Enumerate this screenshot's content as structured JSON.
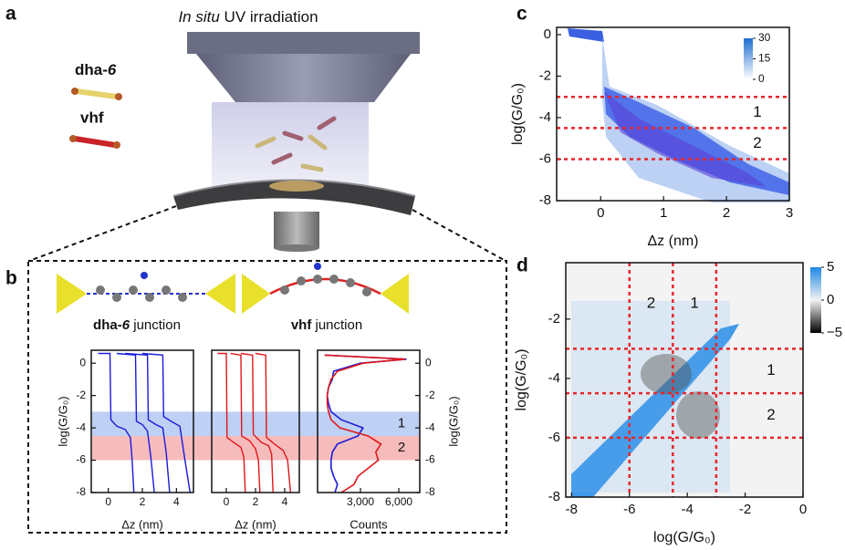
{
  "panel_labels": [
    "a",
    "b",
    "c",
    "d"
  ],
  "panel_a": {
    "title": {
      "italic": "In situ",
      "rest": " UV irradiation"
    },
    "molecules": [
      {
        "name": "dha-",
        "suffix": "6"
      },
      {
        "name": "vhf"
      }
    ]
  },
  "panel_b": {
    "junctions": [
      {
        "name": "dha-",
        "suffix": "6",
        "rest": " junction"
      },
      {
        "name": "vhf",
        "rest": " junction"
      }
    ],
    "bands": [
      {
        "from": -4.5,
        "to": -3,
        "color": "#b3c8f2",
        "label": "1"
      },
      {
        "from": -6,
        "to": -4.5,
        "color": "#f4b0b0",
        "label": "2"
      }
    ]
  },
  "chart_data": [
    {
      "type": "density",
      "xlabel": "Δz (nm)",
      "ylabel": "log(G/G₀)",
      "xlim": [
        -0.7,
        3
      ],
      "xticks": [
        0,
        1,
        2,
        3
      ],
      "ylim": [
        -8,
        0.35
      ],
      "yticks": [
        0,
        -2,
        -4,
        -6,
        -8
      ],
      "hlines": [
        -3,
        -4.5,
        -6
      ],
      "line_color": "#e8262a",
      "regions": [
        "1",
        "2"
      ],
      "colorbar": {
        "clim": [
          0,
          30
        ],
        "ticks": [
          30,
          15,
          0
        ],
        "colors": [
          "#ffffff",
          "#1f6fd1"
        ]
      }
    },
    {
      "type": "density2d",
      "xlabel": "log(G/G₀)",
      "ylabel": "log(G/G₀)",
      "xlim": [
        -8.2,
        0
      ],
      "xticks": [
        -8,
        -6,
        -4,
        -2,
        0
      ],
      "ylim": [
        -8,
        -0.1
      ],
      "yticks": [
        -2,
        -4,
        -6,
        -8
      ],
      "vlines": [
        -6,
        -4.5,
        -3
      ],
      "hlines": [
        -3,
        -4.5,
        -6
      ],
      "line_color": "#e8262a",
      "regions_x": [
        "2",
        "1"
      ],
      "regions_y": [
        "1",
        "2"
      ],
      "colorbar": {
        "clim": [
          -5,
          5
        ],
        "ticks": [
          5,
          0,
          {
            "value": -5,
            "label": "−5"
          }
        ],
        "colors": [
          "#000000",
          "#f2f2f2",
          "#1e88e5"
        ]
      }
    },
    {
      "type": "traces",
      "xlabel": "Δz (nm)",
      "ylabel": "log(G/G₀)",
      "color": "#1a1adb",
      "xlim": [
        -1,
        5
      ],
      "xticks": [
        0,
        2,
        4
      ],
      "ylim": [
        -8,
        0.8
      ],
      "yticks": [
        0,
        -2,
        -4,
        -6,
        -8
      ],
      "series": [
        {
          "x": [
            -0.6,
            0.1,
            0.15,
            0.5,
            1.0,
            1.3,
            1.4,
            1.5
          ],
          "values": [
            0.6,
            0.6,
            -3.5,
            -3.9,
            -4.1,
            -4.6,
            -6.0,
            -8
          ]
        },
        {
          "x": [
            0.5,
            1.6,
            1.65,
            2.0,
            2.3,
            2.5,
            2.7
          ],
          "values": [
            0.6,
            0.5,
            -3.6,
            -3.8,
            -4.2,
            -5.8,
            -8
          ]
        },
        {
          "x": [
            1.0,
            2.3,
            2.35,
            2.8,
            3.2,
            3.4,
            3.6
          ],
          "values": [
            0.6,
            0.5,
            -3.5,
            -3.8,
            -4.0,
            -5.5,
            -8
          ]
        },
        {
          "x": [
            2.0,
            3.2,
            3.25,
            3.7,
            4.2,
            4.5,
            4.8
          ],
          "values": [
            0.6,
            0.5,
            -3.3,
            -3.6,
            -3.9,
            -6.0,
            -8
          ]
        }
      ]
    },
    {
      "type": "traces",
      "xlabel": "Δz (nm)",
      "color": "#e0161b",
      "xlim": [
        -1,
        5
      ],
      "xticks": [
        0,
        2,
        4
      ],
      "ylim": [
        -8,
        0.8
      ],
      "series": [
        {
          "x": [
            -0.6,
            0.0,
            0.05,
            0.5,
            1.0,
            1.2,
            1.3
          ],
          "values": [
            0.6,
            0.6,
            -4.6,
            -4.9,
            -5.2,
            -5.8,
            -8
          ]
        },
        {
          "x": [
            0.3,
            1.0,
            1.05,
            1.6,
            2.0,
            2.2,
            2.3
          ],
          "values": [
            0.6,
            0.5,
            -4.5,
            -4.8,
            -5.3,
            -6.0,
            -8
          ]
        },
        {
          "x": [
            1.0,
            1.8,
            1.85,
            2.4,
            2.9,
            3.1,
            3.2
          ],
          "values": [
            0.6,
            0.5,
            -4.4,
            -4.9,
            -5.1,
            -5.6,
            -8
          ]
        },
        {
          "x": [
            2.0,
            2.7,
            2.75,
            3.3,
            3.9,
            4.2,
            4.4
          ],
          "values": [
            0.6,
            0.5,
            -4.6,
            -5.0,
            -5.4,
            -6.0,
            -8
          ]
        }
      ]
    },
    {
      "type": "profile",
      "xlabel": "Counts",
      "ylabel": "log(G/G₀)",
      "xlim": [
        -360,
        7640
      ],
      "xticks": [
        {
          "value": 3000,
          "label": "3,000"
        },
        {
          "value": 6000,
          "label": "6,000"
        }
      ],
      "ylim": [
        -8,
        0.8
      ],
      "yticks": [
        0,
        -2,
        -4,
        -6,
        -8
      ],
      "y": [
        0.5,
        0.25,
        0,
        -0.5,
        -1,
        -1.5,
        -2,
        -2.5,
        -3,
        -3.5,
        -4,
        -4.5,
        -5,
        -5.5,
        -6,
        -6.5,
        -7,
        -7.5,
        -8
      ],
      "series": [
        {
          "color": "#1a1adb",
          "values": [
            200,
            6600,
            3000,
            900,
            800,
            500,
            400,
            500,
            700,
            1500,
            3200,
            2800,
            1200,
            800,
            700,
            700,
            900,
            1200,
            1000
          ]
        },
        {
          "color": "#e0161b",
          "values": [
            200,
            6500,
            3200,
            1200,
            700,
            500,
            400,
            400,
            500,
            700,
            1400,
            3600,
            4600,
            4200,
            4400,
            3600,
            2800,
            2500,
            1500
          ]
        }
      ]
    }
  ]
}
